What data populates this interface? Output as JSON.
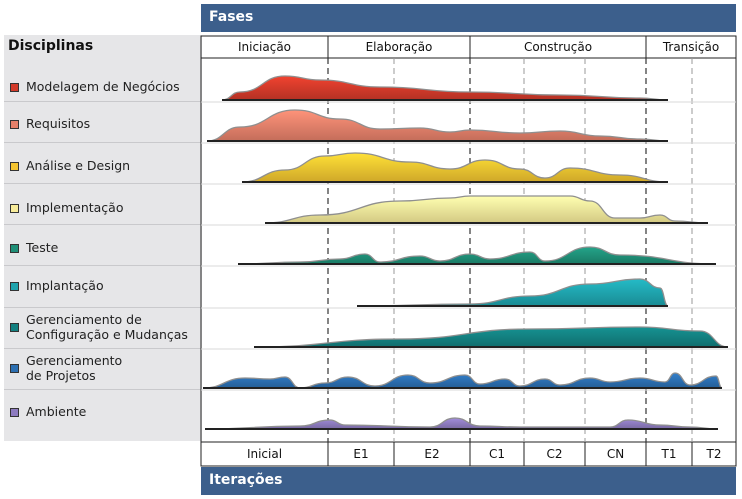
{
  "phases_title": "Fases",
  "iterations_title": "Iterações",
  "disciplines_title": "Disciplinas",
  "phases": [
    "Iniciação",
    "Elaboração",
    "Construção",
    "Transição"
  ],
  "iterations": [
    "Inicial",
    "E1",
    "E2",
    "C1",
    "C2",
    "CN",
    "T1",
    "T2"
  ],
  "disciplines": [
    {
      "lines": [
        "Modelagem de Negócios"
      ],
      "color": "#d23a2a"
    },
    {
      "lines": [
        "Requisitos"
      ],
      "color": "#e5806a"
    },
    {
      "lines": [
        "Análise e Design"
      ],
      "color": "#f4c430"
    },
    {
      "lines": [
        "Implementação"
      ],
      "color": "#f8ec9a"
    },
    {
      "lines": [
        "Teste"
      ],
      "color": "#1f8f77"
    },
    {
      "lines": [
        "Implantação"
      ],
      "color": "#1fa3ad"
    },
    {
      "lines": [
        "Gerenciamento de",
        "Configuração e Mudanças"
      ],
      "color": "#138080"
    },
    {
      "lines": [
        "Gerenciamento",
        "de Projetos"
      ],
      "color": "#2c6fb1"
    },
    {
      "lines": [
        "Ambiente"
      ],
      "color": "#8d7bbf"
    }
  ]
}
